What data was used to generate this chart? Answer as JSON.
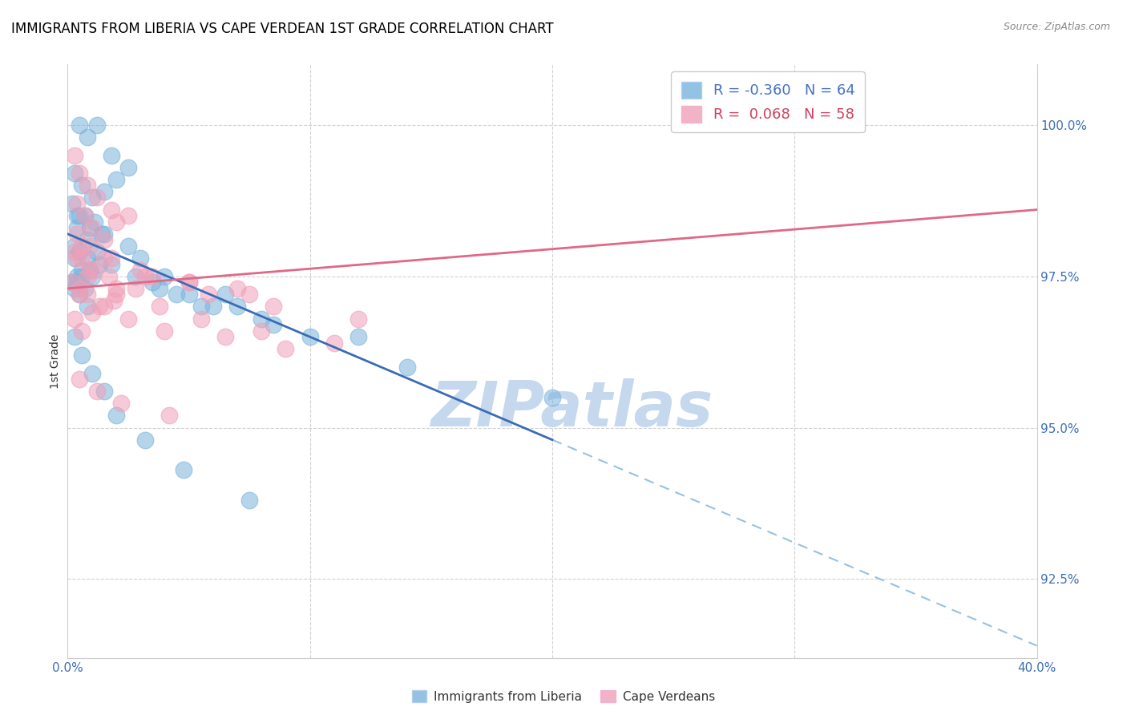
{
  "title": "IMMIGRANTS FROM LIBERIA VS CAPE VERDEAN 1ST GRADE CORRELATION CHART",
  "source": "Source: ZipAtlas.com",
  "ylabel": "1st Grade",
  "x_range": [
    0.0,
    40.0
  ],
  "y_range": [
    91.2,
    101.0
  ],
  "y_ticks": [
    92.5,
    95.0,
    97.5,
    100.0
  ],
  "y_tick_labels": [
    "92.5%",
    "95.0%",
    "97.5%",
    "100.0%"
  ],
  "x_ticks": [
    0,
    10,
    20,
    30,
    40
  ],
  "x_tick_labels": [
    "0.0%",
    "",
    "",
    "",
    "40.0%"
  ],
  "legend_blue_r": "R = -0.360",
  "legend_blue_n": "N = 64",
  "legend_pink_r": "R =  0.068",
  "legend_pink_n": "N = 58",
  "blue_color": "#7ab3dc",
  "pink_color": "#f0a0b8",
  "blue_line_color": "#3a6cb5",
  "pink_line_color": "#e06888",
  "watermark": "ZIPatlas",
  "watermark_color": "#c5d8ee",
  "blue_solid_end": 20,
  "blue_x": [
    0.5,
    0.8,
    1.2,
    1.8,
    2.5,
    0.3,
    0.6,
    1.0,
    1.5,
    2.0,
    0.4,
    0.9,
    1.4,
    0.2,
    0.7,
    1.1,
    0.3,
    0.5,
    0.8,
    1.3,
    0.4,
    0.6,
    0.9,
    0.2,
    0.3,
    0.5,
    0.8,
    0.4,
    0.7,
    0.3,
    0.6,
    1.0,
    3.5,
    4.5,
    6.0,
    8.0,
    10.0,
    14.0,
    20.0,
    5.0,
    7.0,
    12.0,
    0.5,
    1.5,
    2.5,
    3.0,
    4.0,
    6.5,
    0.4,
    0.8,
    1.2,
    1.8,
    2.8,
    3.8,
    5.5,
    8.5,
    0.3,
    0.6,
    1.0,
    1.5,
    2.0,
    3.2,
    4.8,
    7.5
  ],
  "blue_y": [
    100.0,
    99.8,
    100.0,
    99.5,
    99.3,
    99.2,
    99.0,
    98.8,
    98.9,
    99.1,
    98.5,
    98.3,
    98.2,
    98.7,
    98.5,
    98.4,
    98.0,
    97.9,
    97.8,
    97.7,
    97.5,
    97.5,
    97.6,
    97.4,
    97.3,
    97.2,
    97.0,
    97.4,
    97.3,
    97.8,
    97.6,
    97.5,
    97.4,
    97.2,
    97.0,
    96.8,
    96.5,
    96.0,
    95.5,
    97.2,
    97.0,
    96.5,
    98.5,
    98.2,
    98.0,
    97.8,
    97.5,
    97.2,
    98.3,
    98.1,
    97.9,
    97.7,
    97.5,
    97.3,
    97.0,
    96.7,
    96.5,
    96.2,
    95.9,
    95.6,
    95.2,
    94.8,
    94.3,
    93.8
  ],
  "pink_x": [
    0.3,
    0.5,
    0.8,
    1.2,
    1.8,
    2.5,
    0.4,
    0.7,
    1.0,
    1.5,
    2.0,
    0.3,
    0.6,
    1.1,
    1.7,
    0.4,
    0.9,
    0.2,
    0.5,
    0.8,
    1.3,
    1.9,
    2.8,
    0.3,
    0.6,
    1.0,
    2.0,
    3.5,
    5.0,
    7.0,
    0.5,
    1.5,
    2.5,
    4.0,
    6.5,
    9.0,
    0.8,
    2.0,
    3.8,
    5.5,
    8.0,
    11.0,
    0.6,
    1.5,
    3.0,
    5.0,
    7.5,
    0.4,
    0.9,
    1.8,
    3.2,
    5.8,
    8.5,
    12.0,
    0.5,
    1.2,
    2.2,
    4.2
  ],
  "pink_y": [
    99.5,
    99.2,
    99.0,
    98.8,
    98.6,
    98.5,
    98.7,
    98.5,
    98.3,
    98.1,
    98.4,
    97.9,
    97.8,
    97.6,
    97.5,
    97.8,
    97.6,
    97.4,
    97.3,
    97.2,
    97.0,
    97.1,
    97.3,
    96.8,
    96.6,
    96.9,
    97.2,
    97.5,
    97.4,
    97.3,
    97.2,
    97.0,
    96.8,
    96.6,
    96.5,
    96.3,
    97.5,
    97.3,
    97.0,
    96.8,
    96.6,
    96.4,
    98.0,
    97.8,
    97.6,
    97.4,
    97.2,
    98.2,
    98.0,
    97.8,
    97.5,
    97.2,
    97.0,
    96.8,
    95.8,
    95.6,
    95.4,
    95.2
  ],
  "blue_trend_x0": 0.0,
  "blue_trend_y0": 98.2,
  "blue_trend_x1": 20.0,
  "blue_trend_y1": 94.8,
  "blue_dash_x0": 20.0,
  "blue_dash_y0": 94.8,
  "blue_dash_x1": 40.0,
  "blue_dash_y1": 91.4,
  "pink_trend_x0": 0.0,
  "pink_trend_y0": 97.3,
  "pink_trend_x1": 40.0,
  "pink_trend_y1": 98.6
}
